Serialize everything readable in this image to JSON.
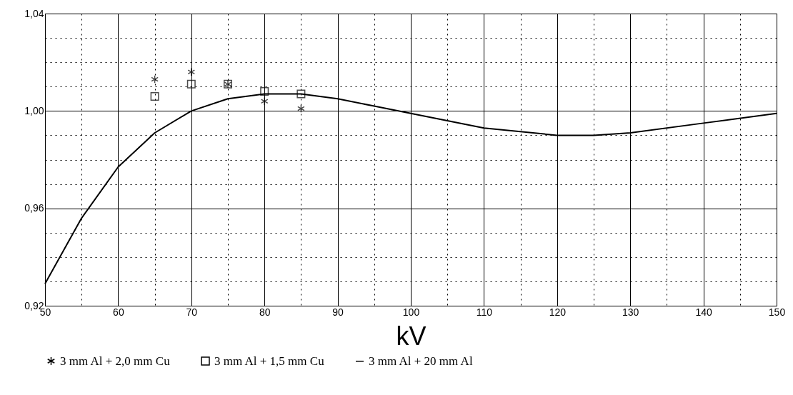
{
  "chart_data": {
    "type": "line",
    "xlabel": "kV",
    "xlim": [
      50,
      150
    ],
    "xticks": [
      50,
      {
        "value": 55,
        "label": null
      },
      60,
      {
        "value": 65,
        "label": null
      },
      70,
      {
        "value": 75,
        "label": null
      },
      80,
      {
        "value": 85,
        "label": null
      },
      90,
      {
        "value": 95,
        "label": null
      },
      100,
      {
        "value": 105,
        "label": null
      },
      110,
      {
        "value": 115,
        "label": null
      },
      120,
      {
        "value": 125,
        "label": null
      },
      130,
      {
        "value": 135,
        "label": null
      },
      140,
      {
        "value": 145,
        "label": null
      },
      150
    ],
    "ylim": [
      0.92,
      1.04
    ],
    "yticks": [
      {
        "value": 0.92,
        "label": "0,92"
      },
      {
        "value": 0.93,
        "label": null
      },
      {
        "value": 0.94,
        "label": null
      },
      {
        "value": 0.95,
        "label": null
      },
      {
        "value": 0.96,
        "label": "0,96"
      },
      {
        "value": 0.97,
        "label": null
      },
      {
        "value": 0.98,
        "label": null
      },
      {
        "value": 0.99,
        "label": null
      },
      {
        "value": 1.0,
        "label": "1,00"
      },
      {
        "value": 1.01,
        "label": null
      },
      {
        "value": 1.02,
        "label": null
      },
      {
        "value": 1.03,
        "label": null
      },
      {
        "value": 1.04,
        "label": "1,04"
      }
    ],
    "grid": true,
    "legend": "bottom",
    "series": [
      {
        "name": "3 mm Al + 2,0 mm Cu",
        "type": "scatter",
        "marker": "cross",
        "color": "#000000",
        "x": [
          65,
          70,
          75,
          80,
          85
        ],
        "values": [
          1.013,
          1.016,
          1.011,
          1.004,
          1.001
        ]
      },
      {
        "name": "3 mm Al + 1,5 mm Cu",
        "type": "scatter",
        "marker": "square",
        "color": "#000000",
        "x": [
          65,
          70,
          75,
          80,
          85
        ],
        "values": [
          1.006,
          1.011,
          1.011,
          1.008,
          1.007
        ]
      },
      {
        "name": "3 mm Al + 20 mm Al",
        "marker": "none",
        "line_style": "solid",
        "color": "#000000",
        "x": [
          50,
          55,
          60,
          65,
          70,
          75,
          80,
          85,
          90,
          95,
          100,
          110,
          120,
          125,
          130,
          140,
          150
        ],
        "values": [
          0.929,
          0.956,
          0.977,
          0.991,
          1.0,
          1.005,
          1.007,
          1.007,
          1.005,
          1.002,
          0.999,
          0.993,
          0.99,
          0.99,
          0.991,
          0.995,
          0.999
        ]
      }
    ]
  }
}
